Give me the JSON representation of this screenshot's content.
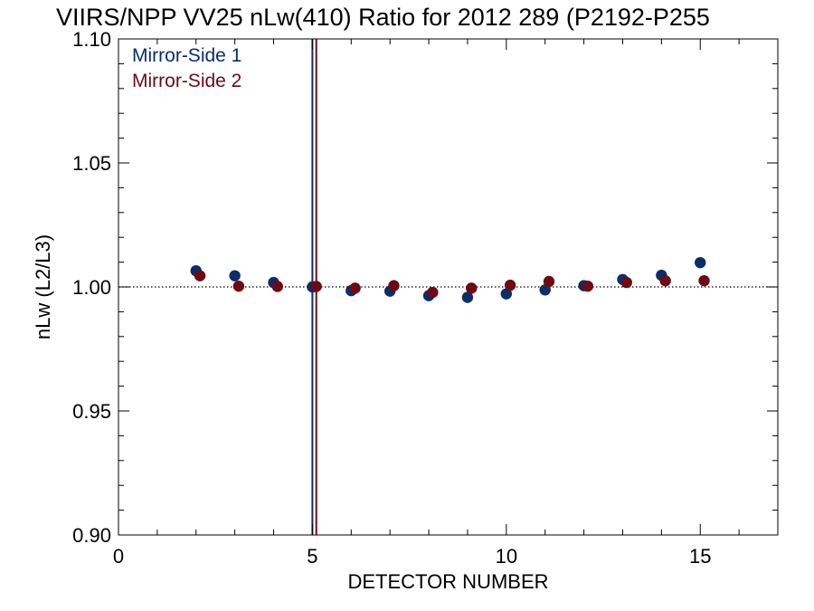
{
  "chart_data": {
    "type": "scatter",
    "title": "VIIRS/NPP VV25 nLw(410) Ratio for 2012 289 (P2192-P255",
    "xlabel": "DETECTOR NUMBER",
    "ylabel": "nLw (L2/L3)",
    "xlim": [
      0,
      17
    ],
    "ylim": [
      0.9,
      1.1
    ],
    "x_ticks": [
      0,
      5,
      10,
      15
    ],
    "y_ticks": [
      0.9,
      0.95,
      1.0,
      1.05,
      1.1
    ],
    "x_tick_labels": [
      "0",
      "5",
      "10",
      "15"
    ],
    "y_tick_labels": [
      "0.90",
      "0.95",
      "1.00",
      "1.05",
      "1.10"
    ],
    "reference_line": {
      "y": 1.0,
      "style": "dotted"
    },
    "vertical_markers": [
      {
        "x": 5.0,
        "color": "#0b2d6b"
      },
      {
        "x": 5.1,
        "color": "#6e0a14"
      }
    ],
    "legend_position": "top-left",
    "series": [
      {
        "name": "Mirror-Side 1",
        "color": "#0b2d6b",
        "x": [
          2,
          3,
          4,
          5,
          6,
          7,
          8,
          9,
          10,
          11,
          12,
          13,
          14,
          15
        ],
        "values": [
          1.0065,
          1.0045,
          1.0018,
          1.0,
          0.9985,
          0.9983,
          0.9965,
          0.9958,
          0.9972,
          0.9988,
          1.0005,
          1.003,
          1.0047,
          1.0098
        ]
      },
      {
        "name": "Mirror-Side 2",
        "color": "#6e0a14",
        "x": [
          2.1,
          3.1,
          4.1,
          5.1,
          6.1,
          7.1,
          8.1,
          9.1,
          10.1,
          11.1,
          12.1,
          13.1,
          14.1,
          15.1
        ],
        "values": [
          1.0045,
          1.0003,
          1.0002,
          1.0002,
          0.9995,
          1.0005,
          0.9978,
          0.9995,
          1.0007,
          1.0022,
          1.0003,
          1.0018,
          1.0025,
          1.0025
        ]
      }
    ]
  }
}
